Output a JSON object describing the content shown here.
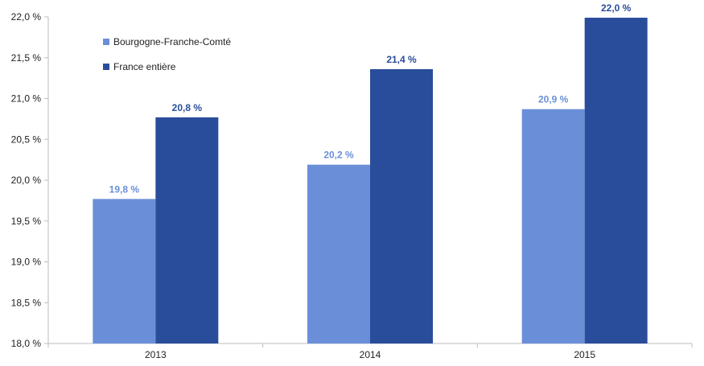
{
  "chart_data": {
    "type": "bar",
    "categories": [
      "2013",
      "2014",
      "2015"
    ],
    "series": [
      {
        "name": "Bourgogne-Franche-Comté",
        "values": [
          19.77,
          20.19,
          20.87
        ],
        "data_labels": [
          "19,8 %",
          "20,2 %",
          "20,9 %"
        ],
        "color": "#6a8fd8"
      },
      {
        "name": "France entière",
        "values": [
          20.77,
          21.36,
          21.99
        ],
        "data_labels": [
          "20,8 %",
          "21,4 %",
          "22,0 %"
        ],
        "color": "#2a4d9b"
      }
    ],
    "ylim": [
      18.0,
      22.0
    ],
    "yticks": [
      18.0,
      18.5,
      19.0,
      19.5,
      20.0,
      20.5,
      21.0,
      21.5,
      22.0
    ],
    "ytick_labels": [
      "18,0 %",
      "18,5 %",
      "19,0 %",
      "19,5 %",
      "20,0 %",
      "20,5 %",
      "21,0 %",
      "21,5 %",
      "22,0 %"
    ],
    "title": "",
    "xlabel": "",
    "ylabel": "",
    "grid": false,
    "legend_position": "top-left"
  }
}
